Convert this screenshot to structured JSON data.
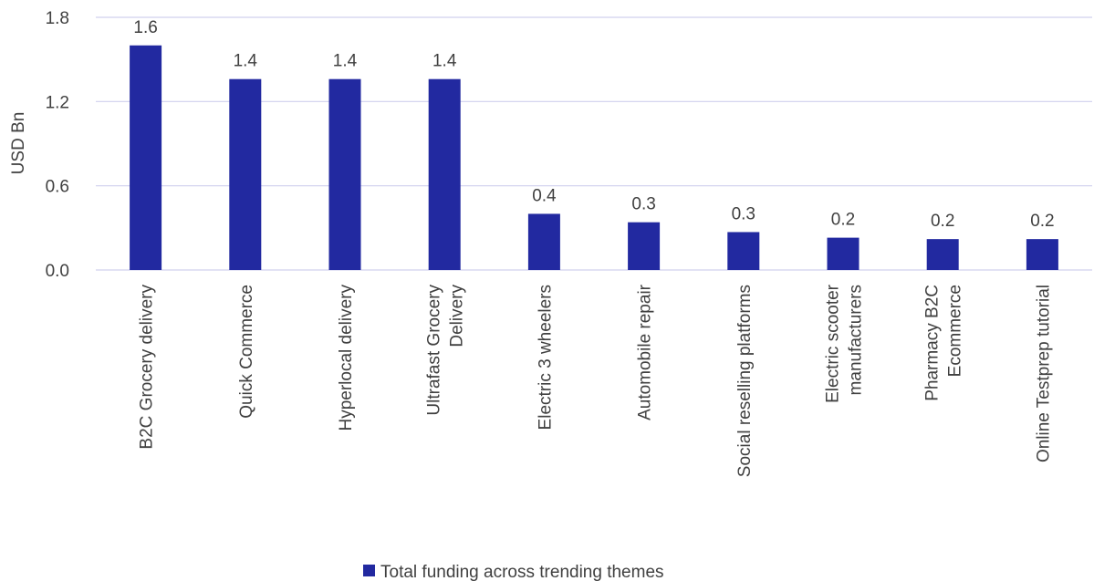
{
  "chart_data": {
    "type": "bar",
    "ylabel": "USD Bn",
    "ylim": [
      0,
      1.8
    ],
    "yticks": [
      "0.0",
      "0.6",
      "1.2",
      "1.8"
    ],
    "grid": true,
    "legend_position": "bottom",
    "categories": [
      [
        "B2C Grocery delivery"
      ],
      [
        "Quick Commerce"
      ],
      [
        "Hyperlocal delivery"
      ],
      [
        "Ultrafast Grocery",
        "Delivery"
      ],
      [
        "Electric 3 wheelers"
      ],
      [
        "Automobile repair"
      ],
      [
        "Social reselling platforms"
      ],
      [
        "Electric scooter",
        "manufacturers"
      ],
      [
        "Pharmacy B2C",
        "Ecommerce"
      ],
      [
        "Online Testprep tutorial"
      ]
    ],
    "series": [
      {
        "name": "Total funding across trending themes",
        "color": "#2229a0",
        "values": [
          1.6,
          1.36,
          1.36,
          1.36,
          0.4,
          0.34,
          0.27,
          0.23,
          0.22,
          0.22
        ],
        "labels": [
          "1.6",
          "1.4",
          "1.4",
          "1.4",
          "0.4",
          "0.3",
          "0.3",
          "0.2",
          "0.2",
          "0.2"
        ]
      }
    ],
    "gridline_color": "#d0d0ee"
  }
}
